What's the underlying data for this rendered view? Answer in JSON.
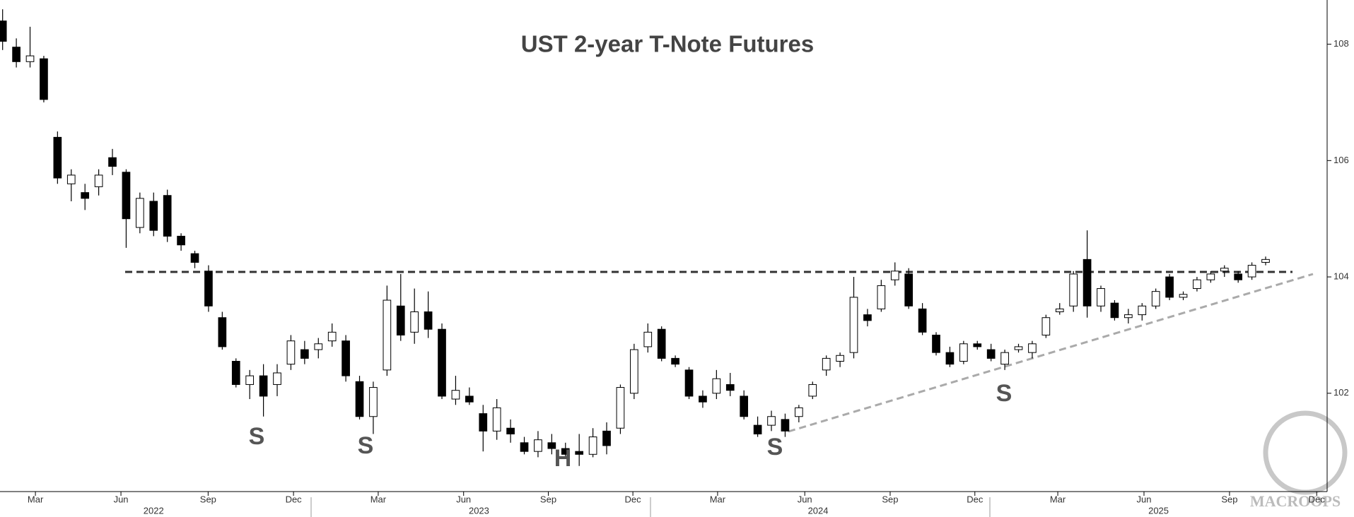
{
  "chart_data": {
    "type": "candlestick",
    "title": "UST 2-year T-Note Futures",
    "open": [
      108.4,
      107.95,
      107.7,
      107.75,
      106.4,
      105.6,
      105.45,
      105.55,
      106.05,
      105.8,
      104.85,
      105.3,
      105.4,
      104.7,
      104.4,
      104.1,
      103.3,
      102.55,
      102.15,
      102.3,
      102.15,
      102.5,
      102.75,
      102.75,
      102.9,
      102.9,
      102.2,
      101.6,
      102.4,
      103.5,
      103.05,
      103.4,
      103.1,
      101.9,
      101.95,
      101.65,
      101.35,
      101.4,
      101.15,
      101.0,
      101.15,
      101.05,
      101.0,
      100.95,
      101.35,
      101.4,
      102.0,
      102.8,
      103.1,
      102.6,
      102.4,
      101.95,
      102.0,
      102.15,
      101.95,
      101.45,
      101.45,
      101.55,
      101.6,
      101.95,
      102.4,
      102.55,
      102.7,
      103.35,
      103.45,
      103.95,
      104.05,
      103.45,
      103.0,
      102.7,
      102.55,
      102.85,
      102.75,
      102.5,
      102.75,
      102.7,
      103.0,
      103.4,
      103.5,
      104.3,
      103.5,
      103.55,
      103.3,
      103.35,
      103.5,
      104.0,
      103.65,
      103.8,
      103.95,
      104.1,
      104.05,
      104.0,
      104.25
    ],
    "high": [
      108.6,
      108.1,
      108.3,
      107.8,
      106.5,
      105.85,
      105.6,
      105.85,
      106.2,
      105.85,
      105.45,
      105.45,
      105.5,
      104.75,
      104.45,
      104.2,
      103.4,
      102.6,
      102.4,
      102.5,
      102.5,
      103.0,
      102.9,
      102.95,
      103.2,
      103.0,
      102.3,
      102.2,
      103.85,
      104.05,
      103.8,
      103.75,
      103.2,
      102.3,
      102.1,
      101.8,
      101.9,
      101.55,
      101.25,
      101.35,
      101.3,
      101.15,
      101.3,
      101.4,
      101.5,
      102.15,
      102.85,
      103.2,
      103.15,
      102.65,
      102.45,
      102.05,
      102.4,
      102.35,
      102.05,
      101.6,
      101.7,
      101.65,
      101.8,
      102.2,
      102.65,
      102.7,
      104.0,
      103.45,
      103.95,
      104.25,
      104.15,
      103.55,
      103.05,
      102.8,
      102.9,
      102.9,
      102.85,
      102.75,
      102.85,
      102.9,
      103.35,
      103.55,
      104.1,
      104.8,
      103.85,
      103.6,
      103.45,
      103.55,
      103.8,
      104.05,
      103.75,
      104.0,
      104.1,
      104.2,
      104.1,
      104.25,
      104.35
    ],
    "low": [
      107.9,
      107.6,
      107.6,
      107.0,
      105.6,
      105.3,
      105.15,
      105.4,
      105.75,
      104.5,
      104.75,
      104.7,
      104.6,
      104.45,
      104.15,
      103.4,
      102.75,
      102.1,
      101.9,
      101.6,
      101.95,
      102.4,
      102.5,
      102.6,
      102.8,
      102.2,
      101.55,
      101.3,
      102.3,
      102.9,
      102.85,
      102.95,
      101.9,
      101.8,
      101.8,
      101.0,
      101.2,
      101.15,
      100.95,
      100.9,
      100.95,
      100.9,
      100.75,
      100.9,
      100.95,
      101.3,
      101.9,
      102.7,
      102.55,
      102.45,
      101.9,
      101.75,
      101.9,
      101.95,
      101.55,
      101.25,
      101.35,
      101.25,
      101.5,
      101.9,
      102.3,
      102.45,
      102.6,
      103.15,
      103.4,
      103.85,
      103.45,
      103.0,
      102.65,
      102.45,
      102.5,
      102.75,
      102.55,
      102.4,
      102.7,
      102.6,
      102.95,
      103.35,
      103.4,
      103.3,
      103.4,
      103.25,
      103.2,
      103.25,
      103.45,
      103.6,
      103.6,
      103.75,
      103.9,
      104.0,
      103.9,
      103.95,
      104.2
    ],
    "close": [
      108.05,
      107.7,
      107.8,
      107.05,
      105.7,
      105.75,
      105.35,
      105.75,
      105.9,
      105.0,
      105.35,
      104.8,
      104.7,
      104.55,
      104.25,
      103.5,
      102.8,
      102.15,
      102.3,
      101.95,
      102.35,
      102.9,
      102.6,
      102.85,
      103.05,
      102.3,
      101.6,
      102.1,
      103.6,
      103.0,
      103.4,
      103.1,
      101.95,
      102.05,
      101.85,
      101.35,
      101.75,
      101.3,
      101.0,
      101.2,
      101.05,
      100.95,
      100.95,
      101.25,
      101.1,
      102.1,
      102.75,
      103.05,
      102.6,
      102.5,
      101.95,
      101.85,
      102.25,
      102.05,
      101.6,
      101.3,
      101.6,
      101.35,
      101.75,
      102.15,
      102.6,
      102.65,
      103.65,
      103.25,
      103.85,
      104.1,
      103.5,
      103.05,
      102.7,
      102.5,
      102.85,
      102.8,
      102.6,
      102.7,
      102.8,
      102.85,
      103.3,
      103.45,
      104.05,
      103.5,
      103.8,
      103.3,
      103.35,
      103.5,
      103.75,
      103.65,
      103.7,
      103.95,
      104.05,
      104.15,
      103.95,
      104.2,
      104.3
    ],
    "up_color": "#ffffff",
    "down_color": "#000000",
    "xlim": [
      -0.19,
      96.48
    ],
    "ylim": [
      100.31,
      108.76
    ],
    "yticks": [
      102,
      104,
      106,
      108
    ],
    "xticks": [
      {
        "value": 2.39,
        "label": "Mar"
      },
      {
        "value": 8.62,
        "label": "Jun"
      },
      {
        "value": 14.97,
        "label": "Sep"
      },
      {
        "value": 21.19,
        "label": "Dec"
      },
      {
        "value": 27.36,
        "label": "Mar"
      },
      {
        "value": 33.58,
        "label": "Jun"
      },
      {
        "value": 39.75,
        "label": "Sep"
      },
      {
        "value": 45.91,
        "label": "Dec"
      },
      {
        "value": 52.08,
        "label": "Mar"
      },
      {
        "value": 58.43,
        "label": "Jun"
      },
      {
        "value": 64.65,
        "label": "Sep"
      },
      {
        "value": 70.82,
        "label": "Dec"
      },
      {
        "value": 76.86,
        "label": "Mar"
      },
      {
        "value": 83.14,
        "label": "Jun"
      },
      {
        "value": 89.37,
        "label": "Sep"
      },
      {
        "value": 95.72,
        "label": "Dec"
      }
    ],
    "year_ticks": [
      {
        "value": 11.0,
        "label": "2022"
      },
      {
        "value": 34.7,
        "label": "2023"
      },
      {
        "value": 59.4,
        "label": "2024"
      },
      {
        "value": 84.2,
        "label": "2025"
      }
    ],
    "annotations": [
      "S",
      "S",
      "H",
      "S",
      "S"
    ],
    "watermark": "MACROOPS"
  }
}
